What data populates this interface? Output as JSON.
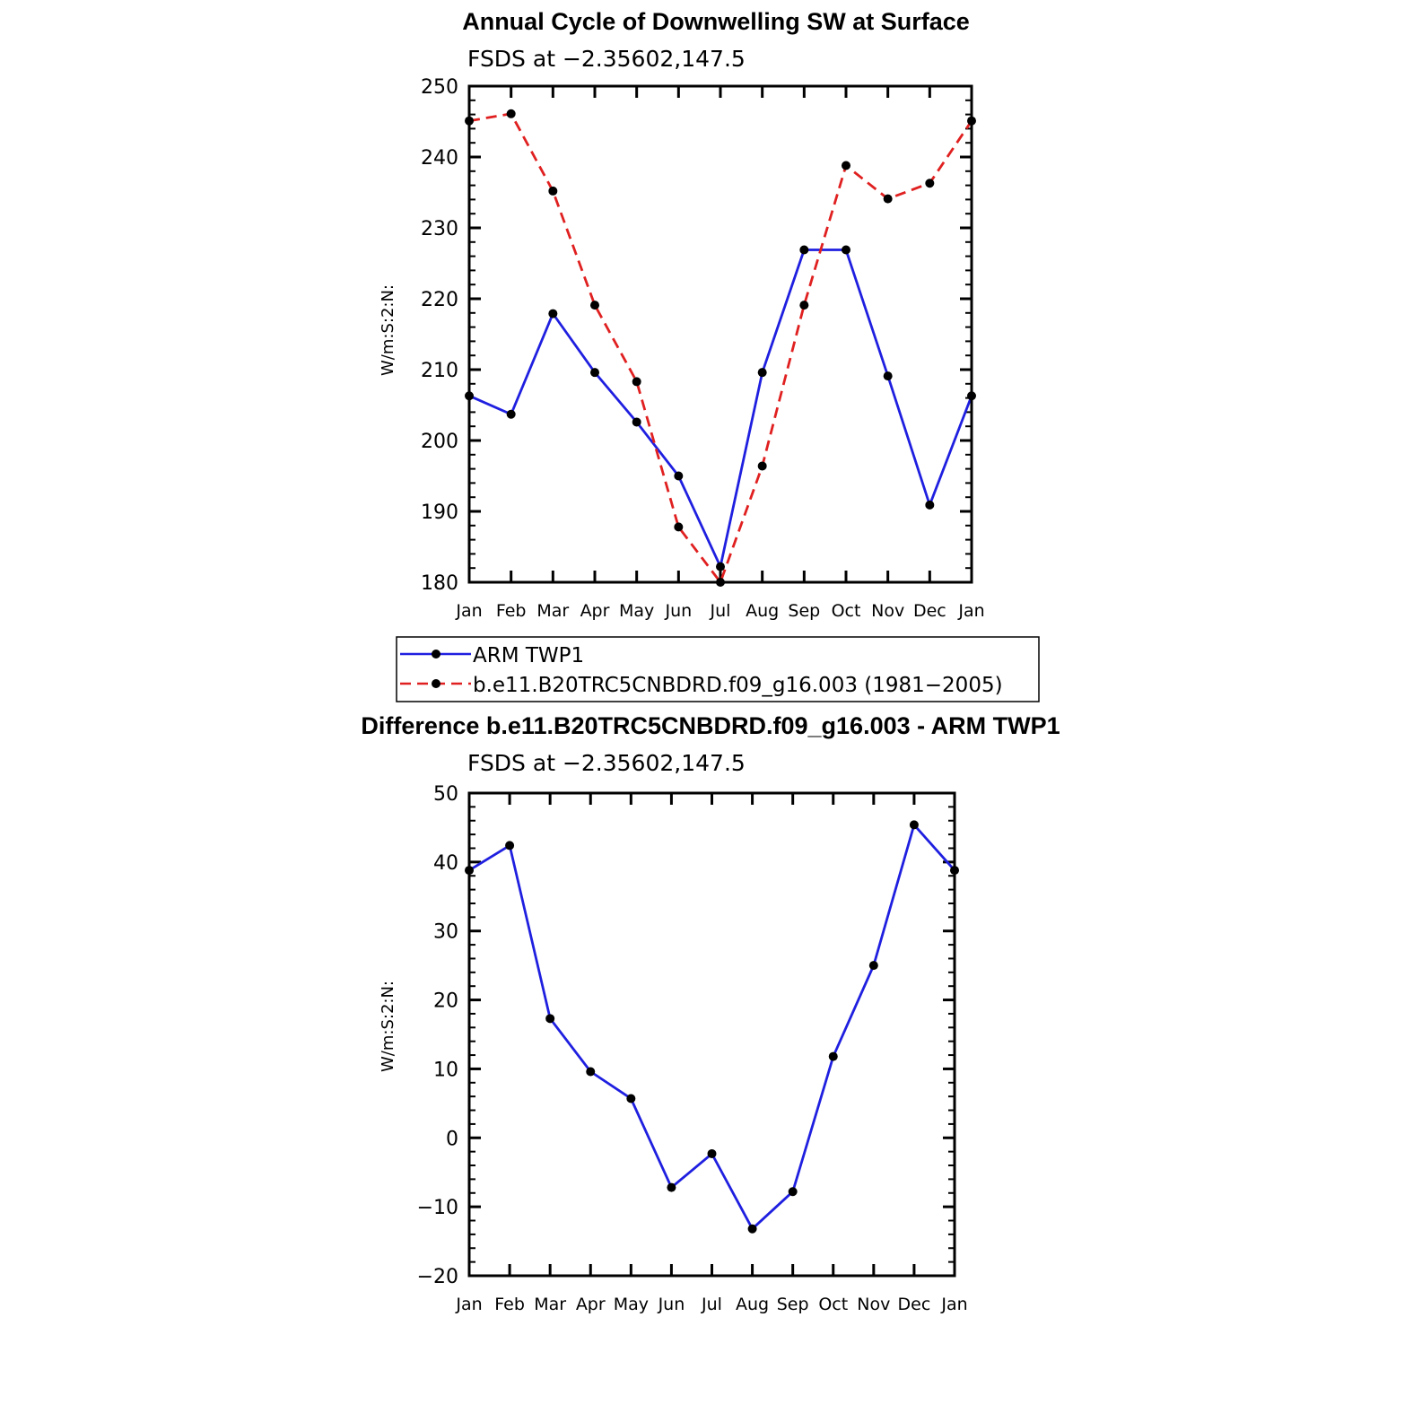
{
  "chart_data": [
    {
      "type": "line",
      "title": "Annual Cycle of Downwelling SW at Surface",
      "subtitle": "FSDS at −2.35602,147.5",
      "ylabel": "W/m:S:2:N:",
      "xlabel": "",
      "ylim": [
        180,
        250
      ],
      "yticks": [
        180,
        190,
        200,
        210,
        220,
        230,
        240,
        250
      ],
      "categories": [
        "Jan",
        "Feb",
        "Mar",
        "Apr",
        "May",
        "Jun",
        "Jul",
        "Aug",
        "Sep",
        "Oct",
        "Nov",
        "Dec",
        "Jan"
      ],
      "series": [
        {
          "name": "ARM TWP1",
          "color": "#1f1fe0",
          "dash": "solid",
          "values": [
            206.3,
            203.7,
            217.9,
            209.6,
            202.6,
            195.0,
            182.2,
            209.6,
            226.9,
            226.9,
            209.1,
            190.9,
            206.3
          ]
        },
        {
          "name": "b.e11.B20TRC5CNBDRD.f09_g16.003 (1981−2005)",
          "color": "#e02020",
          "dash": "dashed",
          "values": [
            245.1,
            246.1,
            235.2,
            219.1,
            208.3,
            187.8,
            180.0,
            196.4,
            219.1,
            238.8,
            234.1,
            236.3,
            245.1
          ]
        }
      ],
      "legend_position": "below"
    },
    {
      "type": "line",
      "title": "Difference b.e11.B20TRC5CNBDRD.f09_g16.003 - ARM TWP1",
      "subtitle": "FSDS at −2.35602,147.5",
      "ylabel": "W/m:S:2:N:",
      "xlabel": "",
      "ylim": [
        -20,
        50
      ],
      "yticks": [
        -20,
        -10,
        0,
        10,
        20,
        30,
        40,
        50
      ],
      "categories": [
        "Jan",
        "Feb",
        "Mar",
        "Apr",
        "May",
        "Jun",
        "Jul",
        "Aug",
        "Sep",
        "Oct",
        "Nov",
        "Dec",
        "Jan"
      ],
      "series": [
        {
          "color": "#1f1fe0",
          "dash": "solid",
          "values": [
            38.8,
            42.4,
            17.3,
            9.6,
            5.7,
            -7.2,
            -2.3,
            -13.2,
            -7.8,
            11.8,
            25.0,
            45.4,
            38.8
          ]
        }
      ]
    }
  ]
}
